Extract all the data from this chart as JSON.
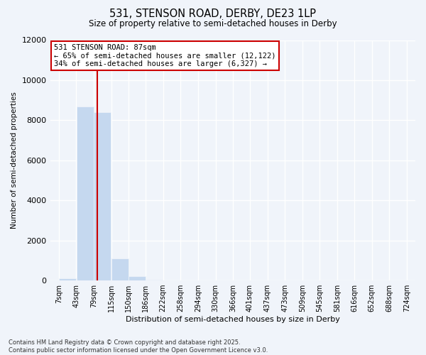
{
  "title": "531, STENSON ROAD, DERBY, DE23 1LP",
  "subtitle": "Size of property relative to semi-detached houses in Derby",
  "xlabel": "Distribution of semi-detached houses by size in Derby",
  "ylabel": "Number of semi-detached properties",
  "property_size": 87,
  "pct_smaller": 65,
  "pct_larger": 34,
  "n_smaller": 12122,
  "n_larger": 6327,
  "bin_edges": [
    7,
    43,
    79,
    115,
    150,
    186,
    222,
    258,
    294,
    330,
    366,
    401,
    437,
    473,
    509,
    545,
    581,
    616,
    652,
    688,
    724
  ],
  "bin_labels": [
    "7sqm",
    "43sqm",
    "79sqm",
    "115sqm",
    "150sqm",
    "186sqm",
    "222sqm",
    "258sqm",
    "294sqm",
    "330sqm",
    "366sqm",
    "401sqm",
    "437sqm",
    "473sqm",
    "509sqm",
    "545sqm",
    "581sqm",
    "616sqm",
    "652sqm",
    "688sqm",
    "724sqm"
  ],
  "bar_heights": [
    100,
    8700,
    8400,
    1100,
    230,
    30,
    0,
    0,
    0,
    0,
    0,
    0,
    0,
    0,
    0,
    0,
    0,
    0,
    0,
    0
  ],
  "bar_color": "#c5d8ef",
  "line_color": "#cc0000",
  "box_color": "#cc0000",
  "ylim": [
    0,
    12000
  ],
  "yticks": [
    0,
    2000,
    4000,
    6000,
    8000,
    10000,
    12000
  ],
  "footer_line1": "Contains HM Land Registry data © Crown copyright and database right 2025.",
  "footer_line2": "Contains public sector information licensed under the Open Government Licence v3.0.",
  "background_color": "#f0f4fa"
}
